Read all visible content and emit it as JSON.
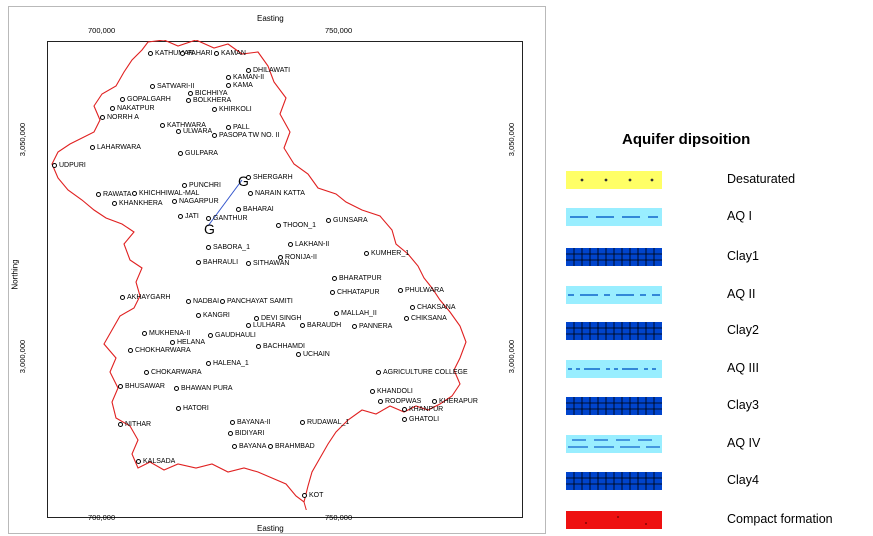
{
  "map": {
    "axis_top": "Easting",
    "axis_bottom": "Easting",
    "axis_left": "Northing",
    "ticks_top": [
      "700,000",
      "750,000"
    ],
    "ticks_bottom": [
      "700,000",
      "750,000"
    ],
    "ticks_left": [
      "3,050,000",
      "3,000,000"
    ],
    "ticks_right": [
      "3,050,000",
      "3,000,000"
    ],
    "places": [
      "KATHUMAR",
      "PAHARI",
      "KAMAN",
      "DHILAWATI",
      "KAMAN-II",
      "KAMA",
      "SATWARI-II",
      "BICHHIYA",
      "GOPALGARH",
      "BOLKHERA",
      "NAKATPUR",
      "KHIRKOLI",
      "NORRH A",
      "KATHWARA",
      "PALL",
      "ULWARA",
      "PASOPA TW NO. II",
      "LAHARWARA",
      "GULPARA",
      "UDPURI",
      "PUNCHRI",
      "SHERGARH",
      "NARAIN KATTA",
      "KHICHHIWAL-MAL",
      "RAWATA",
      "KHANKHERA",
      "NAGARPUR",
      "BAHARAI",
      "JATI",
      "GANTHUR",
      "THOON_1",
      "GUNSARA",
      "SABORA_1",
      "LAKHAN-II",
      "RONIJA-II",
      "KUMHER_1",
      "BAHRAULI",
      "SITHAWAN",
      "BHARATPUR",
      "CHHATAPUR",
      "PHULWARA",
      "AKHAYGARH",
      "NADBAI",
      "PANCHAYAT SAMITI",
      "CHAKSANA",
      "CHIKSANA",
      "KANGRI",
      "DEVI SINGH",
      "MALLAH_II",
      "LULHARA",
      "BARAUDH",
      "PANNERA",
      "MUKHENA-II",
      "HELANA",
      "GAUDHAULI",
      "CHOKHARWARA",
      "BACHHAMDI",
      "UCHAIN",
      "HALENA_1",
      "CHOKARWARA",
      "AGRICULTURE COLLEGE",
      "BHUSAWAR",
      "BHAWAN PURA",
      "KHANDOLI",
      "ROOPWAS",
      "KHERAPUR",
      "KHANPUR",
      "BAYANA-II",
      "HATORI",
      "RUDAWAL_1",
      "GHATOLI",
      "NITHAR",
      "BIDIYARI",
      "BAYANA",
      "BRAHMBAD",
      "KALSADA",
      "KOT"
    ]
  },
  "legend": {
    "title": "Aquifer dipsoition",
    "items": [
      {
        "label": "Desaturated",
        "color": "#ffff66"
      },
      {
        "label": "AQ I",
        "color": "#99eeff"
      },
      {
        "label": "Clay1",
        "color": "#0044cc"
      },
      {
        "label": "AQ II",
        "color": "#99eeff"
      },
      {
        "label": "Clay2",
        "color": "#0044cc"
      },
      {
        "label": "AQ III",
        "color": "#99eeff"
      },
      {
        "label": "Clay3",
        "color": "#0044cc"
      },
      {
        "label": "AQ IV",
        "color": "#99eeff"
      },
      {
        "label": "Clay4",
        "color": "#0044cc"
      },
      {
        "label": "Compact formation",
        "color": "#ee1111"
      }
    ]
  }
}
